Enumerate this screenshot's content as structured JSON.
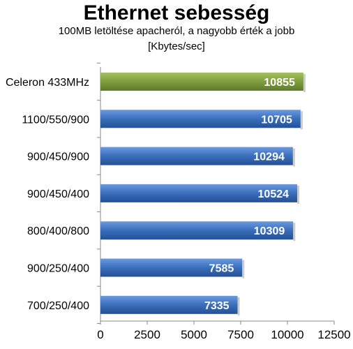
{
  "chart_data": {
    "type": "bar",
    "orientation": "horizontal",
    "title": "Ethernet sebesség",
    "subtitle_lines": [
      "100MB letöltése  apacheról, a nagyobb érték a jobb",
      "[Kbytes/sec]"
    ],
    "categories": [
      "Celeron 433MHz",
      "1100/550/900",
      "900/450/900",
      "900/450/400",
      "800/400/800",
      "900/250/400",
      "700/250/400"
    ],
    "values": [
      10855,
      10705,
      10294,
      10524,
      10309,
      7585,
      7335
    ],
    "bar_colors": [
      "#7a9a3a",
      "#3a6eba",
      "#3a6eba",
      "#3a6eba",
      "#3a6eba",
      "#3a6eba",
      "#3a6eba"
    ],
    "x_ticks": [
      "0",
      "2500",
      "5000",
      "7500",
      "10000",
      "12500"
    ],
    "xlim": [
      0,
      12500
    ],
    "grid": false,
    "data_labels": true
  }
}
